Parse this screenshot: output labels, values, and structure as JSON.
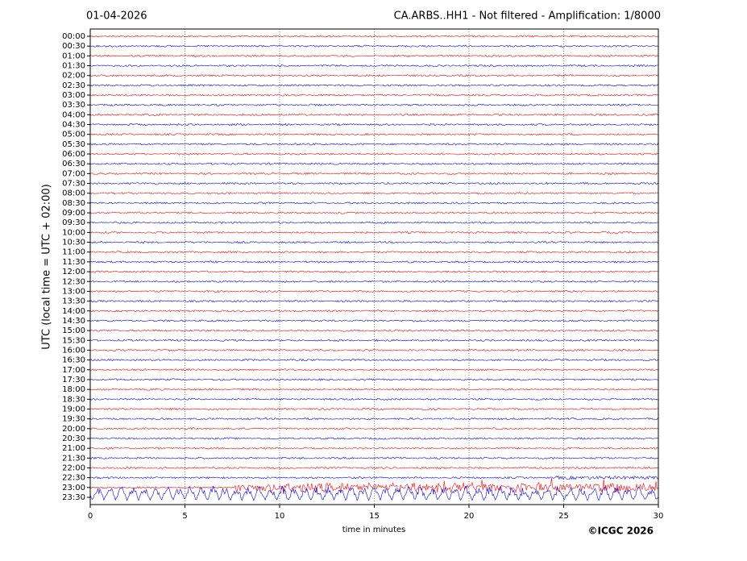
{
  "date": "01-04-2026",
  "chart_data": {
    "type": "helicorder",
    "title": "CA.ARBS..HH1 - Not filtered - Amplification: 1/8000",
    "y_label": "UTC (local time = UTC + 02:00)",
    "x_label": "time in minutes",
    "rows": [
      "00:00",
      "00:30",
      "01:00",
      "01:30",
      "02:00",
      "02:30",
      "03:00",
      "03:30",
      "04:00",
      "04:30",
      "05:00",
      "05:30",
      "06:00",
      "06:30",
      "07:00",
      "07:30",
      "08:00",
      "08:30",
      "09:00",
      "09:30",
      "10:00",
      "10:30",
      "11:00",
      "11:30",
      "12:00",
      "12:30",
      "13:00",
      "13:30",
      "14:00",
      "14:30",
      "15:00",
      "15:30",
      "16:00",
      "16:30",
      "17:00",
      "17:30",
      "18:00",
      "18:30",
      "19:00",
      "19:30",
      "20:00",
      "20:30",
      "21:00",
      "21:30",
      "22:00",
      "22:30",
      "23:00",
      "23:30"
    ],
    "xlim": [
      0,
      30
    ],
    "xticks": [
      0,
      5,
      10,
      15,
      20,
      25,
      30
    ],
    "grid": true,
    "colors": [
      "#ff0000",
      "#0000ff"
    ]
  },
  "copyright": "©ICGC 2026"
}
